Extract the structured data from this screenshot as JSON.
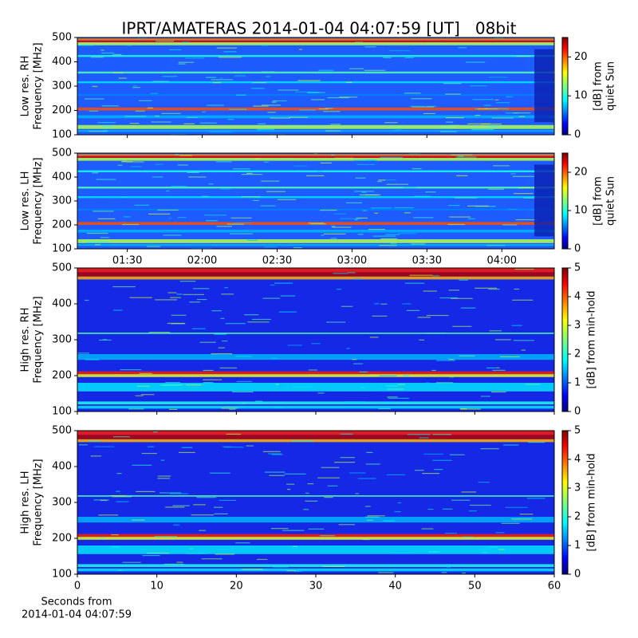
{
  "chart_data": [
    {
      "type": "spectrogram",
      "title": "IPRT/AMATERAS 2014-01-04 04:07:59 [UT]   08bit",
      "ylabel": [
        "Low res. RH",
        "Frequency [MHz]"
      ],
      "ylim": [
        100,
        500
      ],
      "yticks": [
        100,
        200,
        300,
        400,
        500
      ],
      "xlim": [
        "01:10",
        "04:21"
      ],
      "sharex": 1,
      "colormap": "jet",
      "clim": [
        0,
        25
      ],
      "cticks": [
        0,
        10,
        20
      ],
      "clabel": [
        "[dB] from",
        "quiet Sun"
      ]
    },
    {
      "type": "spectrogram",
      "ylabel": [
        "Low res. LH",
        "Frequency [MHz]"
      ],
      "ylim": [
        100,
        500
      ],
      "yticks": [
        100,
        200,
        300,
        400,
        500
      ],
      "xlim": [
        "01:10",
        "04:21"
      ],
      "xticks": [
        "01:30",
        "02:00",
        "02:30",
        "03:00",
        "03:30",
        "04:00"
      ],
      "colormap": "jet",
      "clim": [
        0,
        25
      ],
      "cticks": [
        0,
        10,
        20
      ],
      "clabel": [
        "[dB] from",
        "quiet Sun"
      ]
    },
    {
      "type": "spectrogram",
      "ylabel": [
        "High res. RH",
        "Frequency [MHz]"
      ],
      "ylim": [
        100,
        500
      ],
      "yticks": [
        100,
        200,
        300,
        400,
        500
      ],
      "xlim": [
        0,
        60
      ],
      "sharex": 3,
      "colormap": "jet",
      "clim": [
        0,
        5
      ],
      "cticks": [
        0,
        1,
        2,
        3,
        4,
        5
      ],
      "clabel": [
        "[dB] from min-hold"
      ]
    },
    {
      "type": "spectrogram",
      "ylabel": [
        "High res. LH",
        "Frequency [MHz]"
      ],
      "ylim": [
        100,
        500
      ],
      "yticks": [
        100,
        200,
        300,
        400,
        500
      ],
      "xlim": [
        0,
        60
      ],
      "xticks": [
        0,
        10,
        20,
        30,
        40,
        50,
        60
      ],
      "xlabel": [
        "Seconds from",
        "2014-01-04 04:07:59"
      ],
      "colormap": "jet",
      "clim": [
        0,
        5
      ],
      "cticks": [
        0,
        1,
        2,
        3,
        4,
        5
      ],
      "clabel": [
        "[dB] from min-hold"
      ]
    }
  ]
}
